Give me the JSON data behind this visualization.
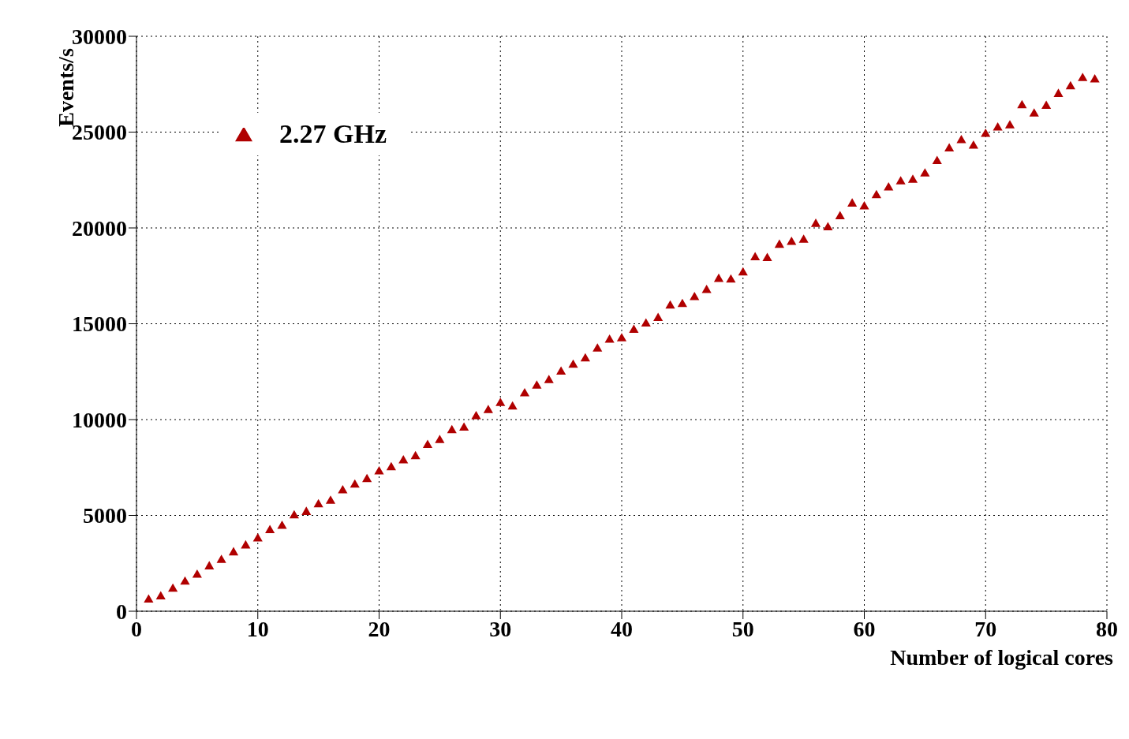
{
  "chart_data": {
    "type": "scatter",
    "xlabel": "Number of logical cores",
    "ylabel": "Events/s",
    "x": [
      1,
      2,
      3,
      4,
      5,
      6,
      7,
      8,
      9,
      10,
      11,
      12,
      13,
      14,
      15,
      16,
      17,
      18,
      19,
      20,
      21,
      22,
      23,
      24,
      25,
      26,
      27,
      28,
      29,
      30,
      31,
      32,
      33,
      34,
      35,
      36,
      37,
      38,
      39,
      40,
      41,
      42,
      43,
      44,
      45,
      46,
      47,
      48,
      49,
      50,
      51,
      52,
      53,
      54,
      55,
      56,
      57,
      58,
      59,
      60,
      61,
      62,
      63,
      64,
      65,
      66,
      67,
      68,
      69,
      70,
      71,
      72,
      73,
      74,
      75,
      76,
      77,
      78,
      79
    ],
    "series": [
      {
        "name": "2.27 GHz",
        "color": "#b00000",
        "values": [
          600,
          760,
          1160,
          1530,
          1890,
          2330,
          2660,
          3060,
          3420,
          3790,
          4220,
          4440,
          4990,
          5170,
          5570,
          5750,
          6300,
          6590,
          6880,
          7280,
          7500,
          7860,
          8080,
          8660,
          8920,
          9430,
          9570,
          10160,
          10480,
          10850,
          10670,
          11360,
          11760,
          12050,
          12490,
          12850,
          13180,
          13690,
          14160,
          14230,
          14670,
          15000,
          15290,
          15940,
          16020,
          16380,
          16750,
          17330,
          17290,
          17660,
          18460,
          18420,
          19110,
          19260,
          19370,
          20200,
          20020,
          20600,
          21260,
          21110,
          21700,
          22100,
          22420,
          22500,
          22830,
          23480,
          24140,
          24570,
          24280,
          24900,
          25230,
          25340,
          26390,
          25960,
          26360,
          26980,
          27380,
          27810,
          27740
        ]
      }
    ],
    "xlim": [
      0,
      80
    ],
    "xticks": [
      0,
      10,
      20,
      30,
      40,
      50,
      60,
      70,
      80
    ],
    "ylim": [
      0,
      30000
    ],
    "yticks": [
      0,
      5000,
      10000,
      15000,
      20000,
      25000,
      30000
    ],
    "grid": true,
    "legend": "top left",
    "marker": "triangle"
  }
}
